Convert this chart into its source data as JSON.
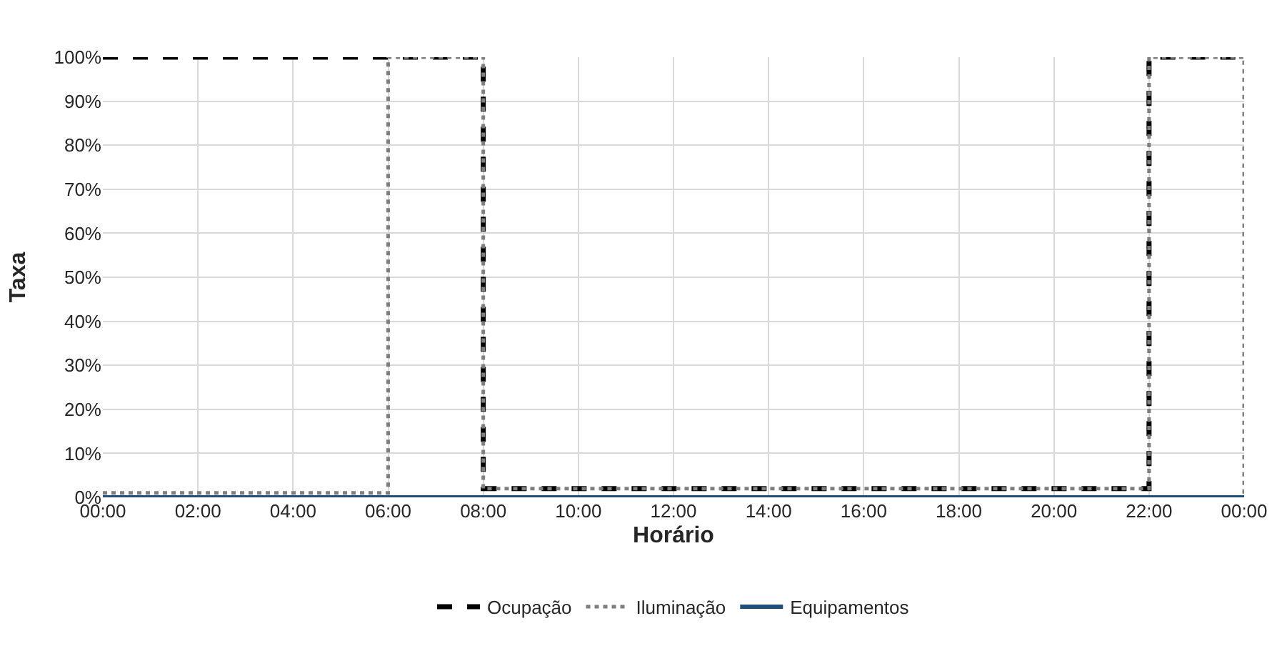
{
  "chart_data": {
    "type": "step",
    "xlabel": "Horário",
    "ylabel": "Taxa",
    "x": [
      0,
      1,
      2,
      3,
      4,
      5,
      6,
      7,
      8,
      9,
      10,
      11,
      12,
      13,
      14,
      15,
      16,
      17,
      18,
      19,
      20,
      21,
      22,
      23,
      24
    ],
    "series": [
      {
        "name": "Ocupação",
        "color": "#000000",
        "line_style": "dashed",
        "values": [
          100,
          100,
          100,
          100,
          100,
          100,
          100,
          100,
          2,
          2,
          2,
          2,
          2,
          2,
          2,
          2,
          2,
          2,
          2,
          2,
          2,
          2,
          100,
          100,
          100
        ]
      },
      {
        "name": "Iluminação",
        "color": "#7f7f7f",
        "line_style": "dotted",
        "values": [
          1,
          1,
          1,
          1,
          1,
          1,
          100,
          100,
          2,
          2,
          2,
          2,
          2,
          2,
          2,
          2,
          2,
          2,
          2,
          2,
          2,
          2,
          100,
          100,
          0
        ]
      },
      {
        "name": "Equipamentos",
        "color": "#1f4e79",
        "line_style": "solid",
        "values": [
          0,
          0,
          0,
          0,
          0,
          0,
          0,
          0,
          0,
          0,
          0,
          0,
          0,
          0,
          0,
          0,
          0,
          0,
          0,
          0,
          0,
          0,
          0,
          0,
          0
        ]
      }
    ],
    "xlim": [
      0,
      24
    ],
    "xticks": [
      {
        "value": 0,
        "label": "00:00"
      },
      {
        "value": 2,
        "label": "02:00"
      },
      {
        "value": 4,
        "label": "04:00"
      },
      {
        "value": 6,
        "label": "06:00"
      },
      {
        "value": 8,
        "label": "08:00"
      },
      {
        "value": 10,
        "label": "10:00"
      },
      {
        "value": 12,
        "label": "12:00"
      },
      {
        "value": 14,
        "label": "14:00"
      },
      {
        "value": 16,
        "label": "16:00"
      },
      {
        "value": 18,
        "label": "18:00"
      },
      {
        "value": 20,
        "label": "20:00"
      },
      {
        "value": 22,
        "label": "22:00"
      },
      {
        "value": 24,
        "label": "00:00"
      }
    ],
    "ylim": [
      0,
      100
    ],
    "yticks": [
      {
        "value": 0,
        "label": "0%"
      },
      {
        "value": 10,
        "label": "10%"
      },
      {
        "value": 20,
        "label": "20%"
      },
      {
        "value": 30,
        "label": "30%"
      },
      {
        "value": 40,
        "label": "40%"
      },
      {
        "value": 50,
        "label": "50%"
      },
      {
        "value": 60,
        "label": "60%"
      },
      {
        "value": 70,
        "label": "70%"
      },
      {
        "value": 80,
        "label": "80%"
      },
      {
        "value": 90,
        "label": "90%"
      },
      {
        "value": 100,
        "label": "100%"
      }
    ],
    "grid": true,
    "legend": "bottom",
    "marker": "none"
  }
}
